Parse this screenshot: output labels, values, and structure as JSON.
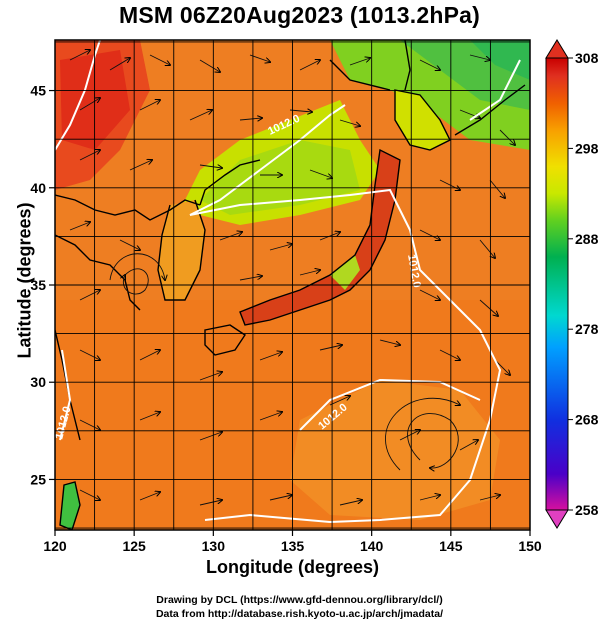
{
  "title": "MSM 06Z20Aug2023 (1013.2hPa)",
  "x_axis": {
    "label": "Longitude (degrees)",
    "ticks": [
      120,
      125,
      130,
      135,
      140,
      145,
      150
    ],
    "range": [
      120,
      150
    ]
  },
  "y_axis": {
    "label": "Latitude  (degrees)",
    "ticks": [
      25,
      30,
      35,
      40,
      45
    ],
    "range": [
      22.4,
      47.6
    ]
  },
  "colorbar": {
    "ticks": [
      308,
      298,
      288,
      278,
      268,
      258
    ],
    "range": [
      258,
      308
    ],
    "colors": [
      "#d6109e",
      "#4a00c8",
      "#1030e0",
      "#00a0ff",
      "#00d8d0",
      "#00b050",
      "#60d020",
      "#c8e800",
      "#f0e000",
      "#f8a000",
      "#f06000",
      "#e03020",
      "#c80000"
    ]
  },
  "contour_labels": [
    "1012.0",
    "1012.0",
    "1012.0",
    "1012.0"
  ],
  "credits": {
    "line1": "Drawing by DCL (https://www.gfd-dennou.org/library/dcl/)",
    "line2": "Data from http://database.rish.kyoto-u.ac.jp/arch/jmadata/"
  }
}
